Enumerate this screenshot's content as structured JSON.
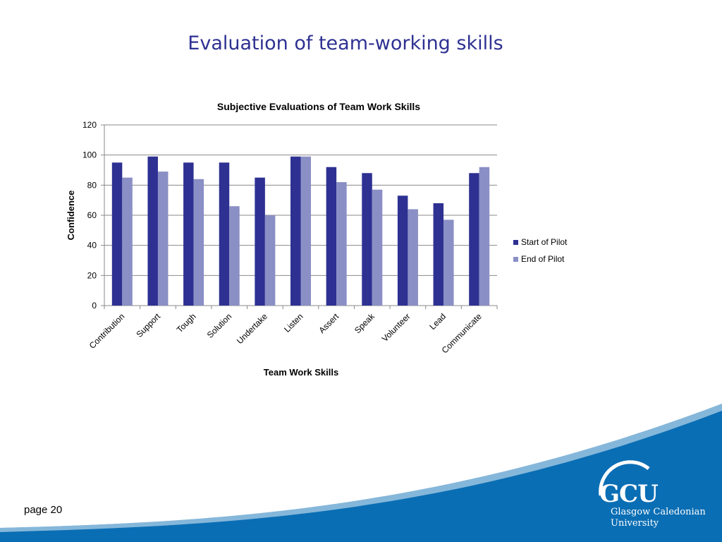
{
  "slide": {
    "title": "Evaluation of team-working skills",
    "page_label": "page 20"
  },
  "logo": {
    "short": "GCU",
    "line1": "Glasgow Caledonian",
    "line2": "University"
  },
  "colors": {
    "title": "#2E3192",
    "start_series": "#2E3192",
    "end_series": "#8A8FC5",
    "footer_blue": "#0A6EB4",
    "gridline": "#898989"
  },
  "chart_data": {
    "type": "bar",
    "title": "Subjective Evaluations of Team Work Skills",
    "xlabel": "Team Work Skills",
    "ylabel": "Confidence",
    "ylim": [
      0,
      120
    ],
    "yticks": [
      0,
      20,
      40,
      60,
      80,
      100,
      120
    ],
    "grid": true,
    "legend_position": "right",
    "categories": [
      "Contribution",
      "Support",
      "Tough",
      "Solution",
      "Undertake",
      "Listen",
      "Assert",
      "Speak",
      "Volunteer",
      "Lead",
      "Communicate"
    ],
    "series": [
      {
        "name": "Start of Pilot",
        "color": "#2E3192",
        "values": [
          95,
          99,
          95,
          95,
          85,
          99,
          92,
          88,
          73,
          68,
          88
        ]
      },
      {
        "name": "End of Pilot",
        "color": "#8A8FC5",
        "values": [
          85,
          89,
          84,
          66,
          60,
          99,
          82,
          77,
          64,
          57,
          92
        ]
      }
    ]
  }
}
